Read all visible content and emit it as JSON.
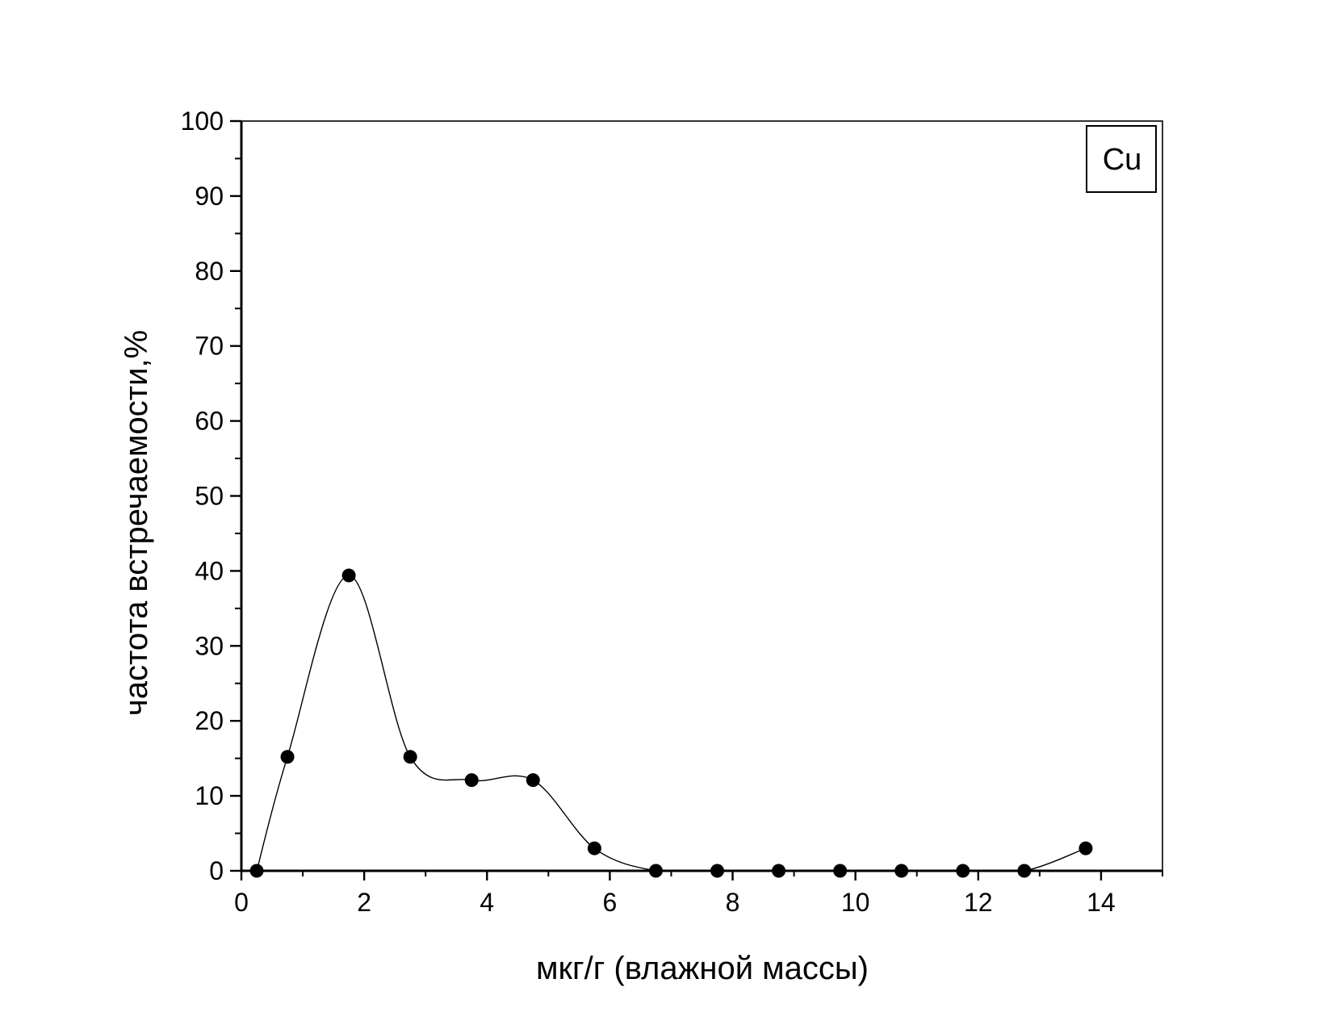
{
  "chart_data": {
    "type": "scatter",
    "title": "",
    "xlabel": "мкг/г (влажной массы)",
    "ylabel": "частота встречаемости,%",
    "xlim": [
      0,
      15
    ],
    "ylim": [
      0,
      100
    ],
    "x_ticks": [
      "0",
      "2",
      "4",
      "6",
      "8",
      "10",
      "12",
      "14"
    ],
    "y_ticks": [
      "0",
      "10",
      "20",
      "30",
      "40",
      "50",
      "60",
      "70",
      "80",
      "90",
      "100"
    ],
    "legend": "Cu",
    "legend_position": "top-right",
    "grid": false,
    "smooth_line": true,
    "series": [
      {
        "x": [
          0.25,
          0.75,
          1.75,
          2.75,
          3.75,
          4.75,
          5.75,
          6.75,
          7.75,
          8.75,
          9.75,
          10.75,
          11.75,
          12.75,
          13.75
        ],
        "y": [
          0,
          15.2,
          39.4,
          15.2,
          12.1,
          12.1,
          3.0,
          0,
          0,
          0,
          0,
          0,
          0,
          0,
          3.0
        ]
      }
    ],
    "colors": {
      "marker": "#000000",
      "line": "#000000",
      "axis": "#000000"
    }
  }
}
